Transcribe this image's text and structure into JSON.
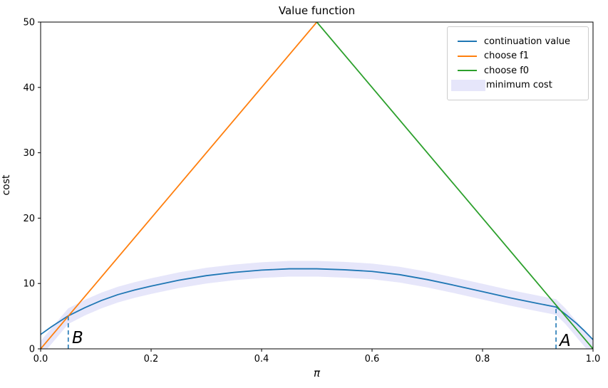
{
  "chart_data": {
    "type": "line",
    "title": "Value function",
    "xlabel": "π",
    "ylabel": "cost",
    "xlim": [
      0,
      1
    ],
    "ylim": [
      0,
      50
    ],
    "grid": false,
    "legend_position": "upper right",
    "xticks": {
      "values": [
        0,
        0.2,
        0.4,
        0.6,
        0.8,
        1.0
      ],
      "labels": [
        "0.0",
        "0.2",
        "0.4",
        "0.6",
        "0.8",
        "1.0"
      ]
    },
    "yticks": {
      "values": [
        0,
        10,
        20,
        30,
        40,
        50
      ],
      "labels": [
        "0",
        "10",
        "20",
        "30",
        "40",
        "50"
      ]
    },
    "series": [
      {
        "name": "continuation value",
        "color": "#1f77b4",
        "x": [
          0,
          0.02,
          0.05,
          0.08,
          0.11,
          0.14,
          0.17,
          0.2,
          0.25,
          0.3,
          0.35,
          0.4,
          0.45,
          0.5,
          0.55,
          0.6,
          0.65,
          0.7,
          0.75,
          0.8,
          0.85,
          0.9,
          0.933,
          0.95,
          0.97,
          0.985,
          1.0
        ],
        "y": [
          2.2,
          3.4,
          5.05,
          6.3,
          7.4,
          8.3,
          9.0,
          9.6,
          10.5,
          11.2,
          11.7,
          12.05,
          12.25,
          12.25,
          12.1,
          11.85,
          11.35,
          10.6,
          9.7,
          8.75,
          7.8,
          6.95,
          6.4,
          5.3,
          3.9,
          2.7,
          1.4
        ]
      },
      {
        "name": "choose f1",
        "color": "#ff7f0e",
        "x": [
          0,
          0.5
        ],
        "y": [
          0,
          50
        ]
      },
      {
        "name": "choose f0",
        "color": "#2ca02c",
        "x": [
          0.5,
          1.0
        ],
        "y": [
          50,
          0
        ]
      }
    ],
    "band": {
      "name": "minimum cost",
      "color": "#e6e6fa",
      "halfwidth": 1.2,
      "x": [
        0,
        0.025,
        0.05,
        0.08,
        0.11,
        0.14,
        0.17,
        0.2,
        0.25,
        0.3,
        0.35,
        0.4,
        0.45,
        0.5,
        0.55,
        0.6,
        0.65,
        0.7,
        0.75,
        0.8,
        0.85,
        0.9,
        0.933,
        0.95,
        0.975,
        1.0
      ],
      "center": [
        0,
        2.5,
        5.0,
        6.3,
        7.4,
        8.3,
        9.0,
        9.6,
        10.5,
        11.2,
        11.7,
        12.05,
        12.25,
        12.25,
        12.1,
        11.85,
        11.35,
        10.6,
        9.7,
        8.75,
        7.8,
        6.95,
        6.4,
        5.0,
        2.5,
        0
      ]
    },
    "vlines": [
      {
        "x": 0.05,
        "ytop": 5.0,
        "color": "#1f77b4",
        "style": "dashed"
      },
      {
        "x": 0.933,
        "ytop": 6.4,
        "color": "#1f77b4",
        "style": "dashed"
      }
    ],
    "annotations": [
      {
        "text": "B",
        "x": 0.062,
        "y": 1.0
      },
      {
        "text": "A",
        "x": 0.943,
        "y": 1.0
      }
    ],
    "legend": {
      "items": [
        {
          "label": "continuation value",
          "swatch": "line",
          "color": "#1f77b4"
        },
        {
          "label": "choose f1",
          "swatch": "line",
          "color": "#ff7f0e"
        },
        {
          "label": "choose f0",
          "swatch": "line",
          "color": "#2ca02c"
        },
        {
          "label": "minimum cost",
          "swatch": "patch",
          "color": "#e6e6fa"
        }
      ]
    }
  }
}
